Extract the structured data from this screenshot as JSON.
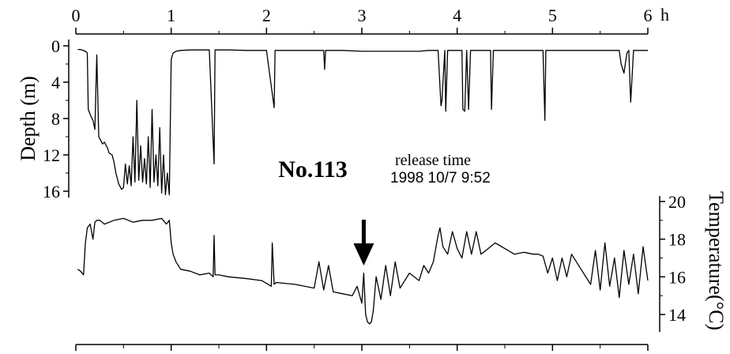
{
  "chart_data": [
    {
      "type": "line",
      "name": "depth",
      "x_axis": {
        "ticks": [
          0,
          1,
          2,
          3,
          4,
          5,
          6
        ],
        "tick_labels": [
          "0",
          "1",
          "2",
          "3",
          "4",
          "5",
          "6"
        ],
        "unit": "h",
        "range": [
          0,
          6
        ]
      },
      "y_axis": {
        "title": "Depth (m)",
        "ticks": [
          0,
          4,
          8,
          12,
          16
        ],
        "tick_labels": [
          "0",
          "4",
          "8",
          "12",
          "16"
        ],
        "range": [
          0,
          17
        ],
        "inverted": true
      },
      "series": [
        {
          "x": [
            0.02,
            0.05,
            0.1,
            0.12,
            0.13,
            0.16,
            0.18,
            0.2,
            0.22,
            0.24,
            0.26,
            0.28,
            0.3,
            0.33,
            0.35,
            0.38,
            0.4,
            0.42,
            0.45,
            0.48,
            0.5,
            0.52,
            0.54,
            0.56,
            0.58,
            0.6,
            0.62,
            0.64,
            0.66,
            0.68,
            0.7,
            0.72,
            0.74,
            0.76,
            0.78,
            0.8,
            0.82,
            0.84,
            0.86,
            0.88,
            0.9,
            0.92,
            0.94,
            0.96,
            0.98,
            1.0,
            1.02,
            1.05,
            1.1,
            1.2,
            1.3,
            1.4,
            1.45,
            1.46,
            1.47,
            1.5,
            1.6,
            1.8,
            2.0,
            2.08,
            2.09,
            2.1,
            2.3,
            2.5,
            2.6,
            2.61,
            2.62,
            2.8,
            3.0,
            3.05,
            3.1,
            3.2,
            3.3,
            3.4,
            3.5,
            3.6,
            3.7,
            3.8,
            3.83,
            3.84,
            3.87,
            3.88,
            3.9,
            3.92,
            3.95,
            4.0,
            4.05,
            4.06,
            4.08,
            4.1,
            4.12,
            4.14,
            4.18,
            4.2,
            4.22,
            4.25,
            4.3,
            4.35,
            4.36,
            4.38,
            4.4,
            4.5,
            4.6,
            4.7,
            4.8,
            4.9,
            4.92,
            4.93,
            4.95,
            5.0,
            5.2,
            5.4,
            5.6,
            5.7,
            5.72,
            5.75,
            5.78,
            5.8,
            5.82,
            5.85,
            5.9,
            5.95,
            6.0
          ],
          "y": [
            0.4,
            0.4,
            0.6,
            0.8,
            7.0,
            7.8,
            8.2,
            9.2,
            1.0,
            10.0,
            10.4,
            10.8,
            10.6,
            11.2,
            11.8,
            12.0,
            12.8,
            14.0,
            15.2,
            15.8,
            15.6,
            13.0,
            15.2,
            13.2,
            15.4,
            10.0,
            15.0,
            6.0,
            14.8,
            11.0,
            15.0,
            12.4,
            15.2,
            10.0,
            15.6,
            7.0,
            15.0,
            12.0,
            15.4,
            9.0,
            16.2,
            12.0,
            16.4,
            14.0,
            16.4,
            1.5,
            0.8,
            0.6,
            0.5,
            0.45,
            0.45,
            0.45,
            13.0,
            0.45,
            0.45,
            0.45,
            0.45,
            0.5,
            0.5,
            6.8,
            0.5,
            0.5,
            0.5,
            0.5,
            0.5,
            2.6,
            0.5,
            0.5,
            0.6,
            0.6,
            0.6,
            0.6,
            0.6,
            0.6,
            0.6,
            0.6,
            0.5,
            0.5,
            6.6,
            6.0,
            0.5,
            7.2,
            0.5,
            0.5,
            0.5,
            0.5,
            0.5,
            7.0,
            7.2,
            0.5,
            7.0,
            0.5,
            0.5,
            0.5,
            0.5,
            0.5,
            0.5,
            0.5,
            7.0,
            0.5,
            0.5,
            0.5,
            0.5,
            0.5,
            0.5,
            0.5,
            8.2,
            0.5,
            0.5,
            0.5,
            0.5,
            0.5,
            0.5,
            0.5,
            2.0,
            3.0,
            0.8,
            0.5,
            6.2,
            0.5,
            0.5,
            0.5,
            0.5
          ]
        }
      ]
    },
    {
      "type": "line",
      "name": "temperature",
      "x_axis": {
        "ticks": [
          0,
          1,
          2,
          3,
          4,
          5,
          6
        ],
        "range": [
          0,
          6
        ]
      },
      "y_axis": {
        "title": "Temperature(°C)",
        "ticks": [
          14,
          16,
          18,
          20
        ],
        "tick_labels": [
          "14",
          "16",
          "18",
          "20"
        ],
        "range": [
          13.2,
          20
        ],
        "position": "right"
      },
      "series": [
        {
          "x": [
            0.02,
            0.05,
            0.08,
            0.1,
            0.12,
            0.15,
            0.18,
            0.2,
            0.22,
            0.25,
            0.3,
            0.4,
            0.5,
            0.6,
            0.7,
            0.8,
            0.9,
            0.95,
            0.98,
            1.0,
            1.02,
            1.05,
            1.1,
            1.2,
            1.3,
            1.4,
            1.44,
            1.45,
            1.46,
            1.5,
            1.6,
            1.8,
            1.95,
            2.05,
            2.06,
            2.08,
            2.1,
            2.3,
            2.5,
            2.55,
            2.6,
            2.65,
            2.7,
            2.8,
            2.9,
            2.95,
            3.0,
            3.02,
            3.04,
            3.06,
            3.08,
            3.1,
            3.12,
            3.15,
            3.2,
            3.25,
            3.3,
            3.35,
            3.4,
            3.5,
            3.6,
            3.65,
            3.7,
            3.75,
            3.8,
            3.82,
            3.85,
            3.9,
            3.95,
            4.0,
            4.05,
            4.1,
            4.15,
            4.2,
            4.25,
            4.3,
            4.4,
            4.5,
            4.6,
            4.7,
            4.8,
            4.85,
            4.9,
            4.95,
            5.0,
            5.05,
            5.1,
            5.15,
            5.2,
            5.3,
            5.4,
            5.45,
            5.5,
            5.55,
            5.6,
            5.65,
            5.7,
            5.75,
            5.8,
            5.85,
            5.9,
            5.95,
            6.0
          ],
          "y": [
            16.4,
            16.3,
            16.1,
            17.8,
            18.6,
            18.8,
            18.0,
            18.9,
            19.0,
            19.0,
            18.8,
            19.0,
            19.1,
            18.9,
            19.0,
            19.0,
            19.1,
            18.8,
            19.0,
            17.8,
            17.2,
            16.8,
            16.4,
            16.3,
            16.1,
            16.2,
            16.0,
            18.2,
            16.1,
            16.1,
            16.0,
            15.9,
            15.8,
            15.5,
            17.8,
            15.6,
            15.7,
            15.6,
            15.4,
            16.8,
            15.3,
            16.6,
            15.2,
            15.1,
            15.0,
            15.5,
            14.6,
            16.2,
            14.0,
            13.6,
            13.5,
            13.6,
            14.2,
            16.0,
            14.8,
            16.6,
            15.0,
            16.8,
            15.4,
            16.2,
            15.8,
            16.6,
            16.2,
            16.8,
            18.2,
            18.6,
            17.6,
            17.2,
            18.4,
            17.5,
            17.0,
            18.4,
            17.2,
            18.4,
            17.2,
            17.4,
            17.8,
            17.5,
            17.2,
            17.3,
            17.2,
            17.2,
            17.1,
            16.2,
            17.0,
            15.8,
            17.0,
            16.0,
            17.2,
            16.4,
            15.6,
            17.4,
            15.3,
            17.8,
            15.5,
            17.0,
            14.9,
            17.4,
            15.6,
            17.2,
            15.1,
            17.6,
            15.8
          ]
        }
      ]
    }
  ],
  "annotations": {
    "id_label": "No.113",
    "release_title": "release time",
    "release_value": "1998 10/7 9:52",
    "arrow": {
      "x": 3.02,
      "label": ""
    },
    "hour_unit": "h"
  },
  "colors": {
    "line": "#000000",
    "background": "#ffffff"
  }
}
